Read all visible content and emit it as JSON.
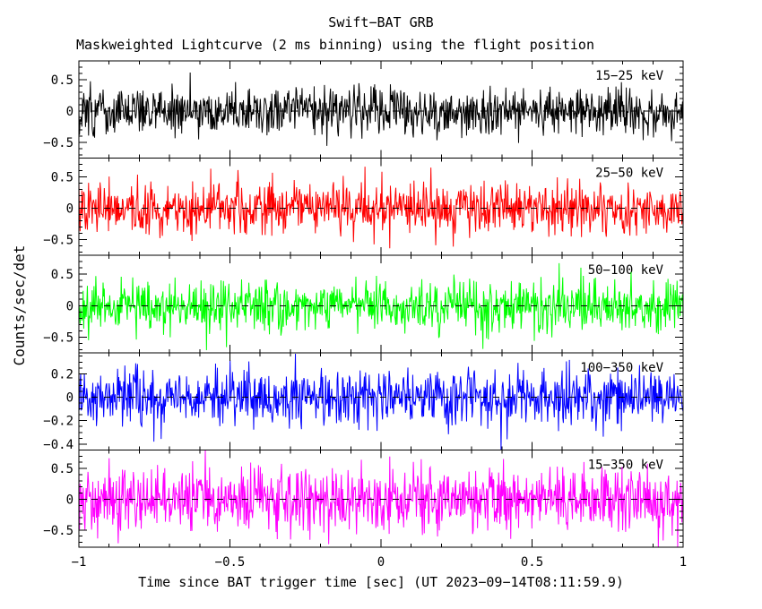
{
  "figure": {
    "title": "Swift−BAT GRB",
    "subtitle": "Maskweighted Lightcurve (2 ms binning) using the flight position",
    "xlabel": "Time since BAT trigger time [sec] (UT 2023−09−14T08:11:59.9)",
    "ylabel": "Counts/sec/det"
  },
  "chart_data": {
    "type": "line",
    "title": "Swift−BAT GRB",
    "subtitle": "Maskweighted Lightcurve (2 ms binning) using the flight position",
    "xlabel": "Time since BAT trigger time [sec] (UT 2023−09−14T08:11:59.9)",
    "ylabel": "Counts/sec/det",
    "xlim": [
      -1,
      1
    ],
    "x_minor_step": 0.1,
    "x_major_step": 0.5,
    "xticks": [
      {
        "v": -1,
        "label": "−1"
      },
      {
        "v": -0.5,
        "label": "−0.5"
      },
      {
        "v": 0,
        "label": "0"
      },
      {
        "v": 0.5,
        "label": "0.5"
      },
      {
        "v": 1,
        "label": "1"
      }
    ],
    "bin_seconds": 0.002,
    "n_points": 1000,
    "grid": false,
    "zero_line": "dashed-black",
    "legend_position": "inside-top-right-per-panel",
    "panels": [
      {
        "label": "15−25 keV",
        "color": "#000000",
        "ylim": [
          -0.75,
          0.8
        ],
        "y_minor_step": 0.1,
        "yticks": [
          {
            "v": 0.5,
            "label": "0.5"
          },
          {
            "v": 0,
            "label": "0"
          },
          {
            "v": -0.5,
            "label": "−0.5"
          }
        ],
        "noise_mean": 0,
        "noise_sigma": 0.19
      },
      {
        "label": "25−50 keV",
        "color": "#ff0000",
        "ylim": [
          -0.75,
          0.8
        ],
        "y_minor_step": 0.1,
        "yticks": [
          {
            "v": 0.5,
            "label": "0.5"
          },
          {
            "v": 0,
            "label": "0"
          },
          {
            "v": -0.5,
            "label": "−0.5"
          }
        ],
        "noise_mean": 0,
        "noise_sigma": 0.21
      },
      {
        "label": "50−100 keV",
        "color": "#00ff00",
        "ylim": [
          -0.75,
          0.8
        ],
        "y_minor_step": 0.1,
        "yticks": [
          {
            "v": 0.5,
            "label": "0.5"
          },
          {
            "v": 0,
            "label": "0"
          },
          {
            "v": -0.5,
            "label": "−0.5"
          }
        ],
        "noise_mean": 0,
        "noise_sigma": 0.2
      },
      {
        "label": "100−350 keV",
        "color": "#0000ff",
        "ylim": [
          -0.45,
          0.38
        ],
        "y_minor_step": 0.05,
        "yticks": [
          {
            "v": 0.2,
            "label": "0.2"
          },
          {
            "v": 0,
            "label": "0"
          },
          {
            "v": -0.2,
            "label": "−0.2"
          },
          {
            "v": -0.4,
            "label": "−0.4"
          }
        ],
        "noise_mean": 0,
        "noise_sigma": 0.125
      },
      {
        "label": "15−350 keV",
        "color": "#ff00ff",
        "ylim": [
          -0.78,
          0.8
        ],
        "y_minor_step": 0.1,
        "yticks": [
          {
            "v": 0.5,
            "label": "0.5"
          },
          {
            "v": 0,
            "label": "0"
          },
          {
            "v": -0.5,
            "label": "−0.5"
          }
        ],
        "noise_mean": 0,
        "noise_sigma": 0.27
      }
    ]
  }
}
